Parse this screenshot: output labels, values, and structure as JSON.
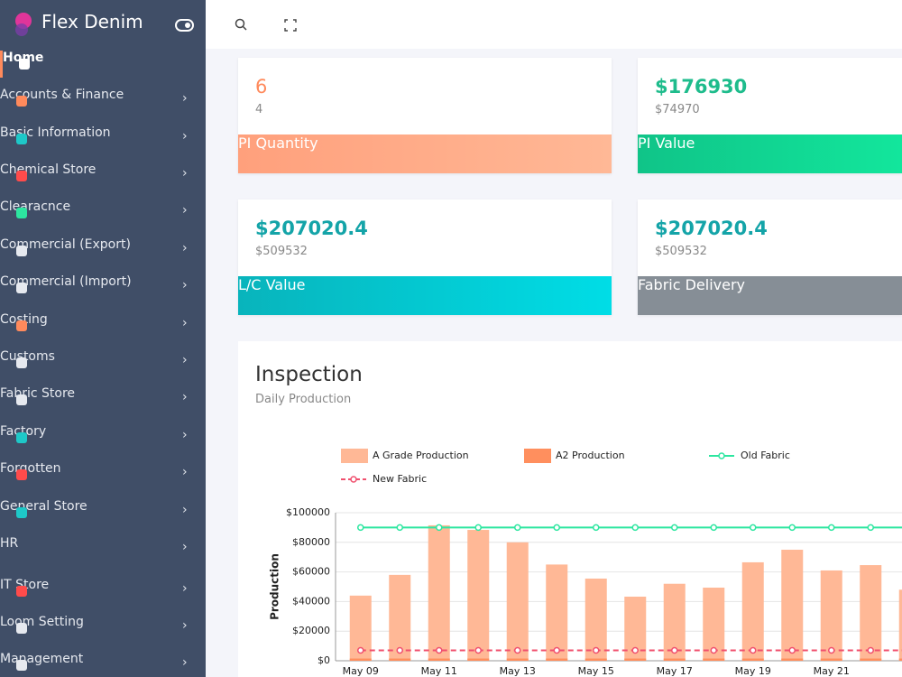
{
  "sidebar": {
    "brand": "Flex Denim",
    "menu": [
      "Home",
      "Accounts & Finance",
      "Basic Information",
      "Chemical Store",
      "Clearacnce",
      "Commercial (Export)",
      "Commercial (Import)",
      "Costing",
      "Customs",
      "Fabric Store",
      "Factory",
      "Forgotten",
      "General Store",
      "HR",
      "IT Store",
      "Loom Setting",
      "Management"
    ]
  },
  "cards": [
    {
      "value": "6",
      "sub": "4",
      "label": "PI Quantity"
    },
    {
      "value": "$176930",
      "sub": "$74970",
      "label": "PI Value"
    },
    {
      "value": "$207020.4",
      "sub": "$509532",
      "label": "L/C Value"
    },
    {
      "value": "$207020.4",
      "sub": "$509532",
      "label": "Fabric Delivery"
    }
  ],
  "chart_data": {
    "type": "bar",
    "title": "Inspection",
    "subtitle": "Daily Production",
    "y_label": "Production",
    "categories": [
      "May 09",
      null,
      "May 11",
      null,
      "May 13",
      null,
      "May 15",
      null,
      "May 17",
      null,
      "May 19",
      null,
      "May 21",
      null,
      null
    ],
    "series": [
      {
        "name": "A Grade Production",
        "type": "bar",
        "color": "#ffb896",
        "values": [
          44000,
          58000,
          91500,
          88400,
          80000,
          65000,
          55500,
          43300,
          52000,
          49400,
          66500,
          75000,
          61000,
          64600,
          48000
        ]
      },
      {
        "name": "A2 Production",
        "type": "bar",
        "color": "#ff8f5e",
        "values": [
          1500,
          1500,
          1500,
          1500,
          1500,
          1500,
          1500,
          1500,
          1500,
          1500,
          1500,
          1500,
          1500,
          1500,
          1500
        ]
      },
      {
        "name": "Old Fabric",
        "type": "line",
        "color": "#2de6a0",
        "line_style": "solid",
        "values": [
          90000,
          90000,
          90000,
          90000,
          90000,
          90000,
          90000,
          90000,
          90000,
          90000,
          90000,
          90000,
          90000,
          90000,
          90000
        ]
      },
      {
        "name": "New Fabric",
        "type": "line",
        "color": "#f0506e",
        "line_style": "dashed",
        "values": [
          7000,
          7000,
          7000,
          7000,
          7000,
          7000,
          7000,
          7000,
          7000,
          7000,
          7000,
          7000,
          7000,
          7000,
          7000
        ]
      }
    ],
    "ylim": [
      0,
      100000
    ],
    "yticks": [
      {
        "value": 0,
        "label": "$0"
      },
      {
        "value": 20000,
        "label": "$20000"
      },
      {
        "value": 40000,
        "label": "$40000"
      },
      {
        "value": 60000,
        "label": "$60000"
      },
      {
        "value": 80000,
        "label": "$80000"
      },
      {
        "value": 100000,
        "label": "$100000"
      }
    ],
    "grid": true
  }
}
